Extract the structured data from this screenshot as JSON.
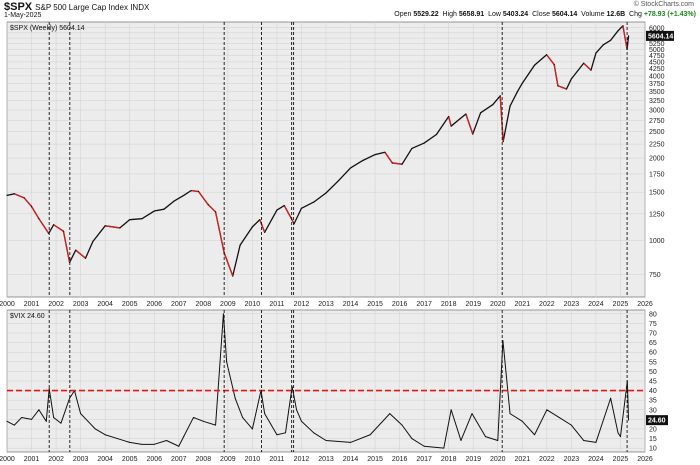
{
  "header": {
    "symbol": "$SPX",
    "name": "S&P 500 Large Cap Index",
    "exchange": "INDX",
    "date": "1-May-2025",
    "credit": "© StockCharts.com",
    "open_label": "Open",
    "open": "5529.22",
    "high_label": "High",
    "high": "5658.91",
    "low_label": "Low",
    "low": "5403.24",
    "close_label": "Close",
    "close": "5604.14",
    "volume_label": "Volume",
    "volume": "12.6B",
    "chg_label": "Chg",
    "chg": "+78.93 (+1.43%)"
  },
  "colors": {
    "price_line": "#111111",
    "price_down": "#d62020",
    "vix_line": "#111111",
    "threshold": "#e01818",
    "vlines": "#111111",
    "grid": "#d0d0d0",
    "panel_bg": "#ececec"
  },
  "chart_data": [
    {
      "type": "line",
      "label": "$SPX (Weekly) 5604.14",
      "last_value_label": "5604.14",
      "y_scale": "log",
      "ylim": [
        620,
        6300
      ],
      "yticks": [
        750,
        1000,
        1250,
        1500,
        1750,
        2000,
        2250,
        2500,
        2750,
        3000,
        3250,
        3500,
        3750,
        4000,
        4250,
        4500,
        4750,
        5000,
        5250,
        5500,
        5750,
        6000
      ],
      "xlim": [
        2000.0,
        2026.0
      ],
      "xticks": [
        "2000",
        "2001",
        "2002",
        "2003",
        "2004",
        "2005",
        "2006",
        "2007",
        "2008",
        "2009",
        "2010",
        "2011",
        "2012",
        "2013",
        "2014",
        "2015",
        "2016",
        "2017",
        "2018",
        "2019",
        "2020",
        "2021",
        "2022",
        "2023",
        "2024",
        "2025",
        "2026"
      ],
      "x": [
        2000.0,
        2000.3,
        2000.7,
        2001.0,
        2001.3,
        2001.7,
        2001.9,
        2002.3,
        2002.55,
        2002.8,
        2003.2,
        2003.5,
        2004.0,
        2004.6,
        2005.0,
        2005.5,
        2006.0,
        2006.4,
        2006.8,
        2007.2,
        2007.5,
        2007.8,
        2008.2,
        2008.5,
        2008.85,
        2009.2,
        2009.5,
        2010.0,
        2010.3,
        2010.5,
        2011.0,
        2011.3,
        2011.7,
        2012.0,
        2012.5,
        2013.0,
        2013.5,
        2014.0,
        2014.5,
        2015.0,
        2015.4,
        2015.7,
        2016.1,
        2016.5,
        2017.0,
        2017.5,
        2018.0,
        2018.1,
        2018.7,
        2018.98,
        2019.3,
        2019.8,
        2020.1,
        2020.22,
        2020.5,
        2020.8,
        2021.0,
        2021.5,
        2021.99,
        2022.3,
        2022.45,
        2022.8,
        2023.0,
        2023.5,
        2023.8,
        2024.0,
        2024.3,
        2024.6,
        2024.9,
        2025.1,
        2025.27,
        2025.33
      ],
      "y": [
        1460,
        1480,
        1430,
        1330,
        1200,
        1060,
        1140,
        1080,
        830,
        920,
        860,
        990,
        1130,
        1110,
        1190,
        1200,
        1280,
        1300,
        1390,
        1460,
        1520,
        1510,
        1350,
        1270,
        900,
        740,
        960,
        1120,
        1190,
        1070,
        1290,
        1340,
        1150,
        1310,
        1380,
        1490,
        1650,
        1840,
        1960,
        2060,
        2100,
        1920,
        1900,
        2170,
        2270,
        2440,
        2840,
        2620,
        2900,
        2450,
        2930,
        3140,
        3380,
        2300,
        3100,
        3500,
        3760,
        4380,
        4780,
        4400,
        3680,
        3580,
        3900,
        4450,
        4200,
        4850,
        5200,
        5400,
        5850,
        6100,
        5000,
        5604
      ]
    },
    {
      "type": "line",
      "label": "$VIX 24.60",
      "last_value_label": "24.60",
      "ylim": [
        8,
        82
      ],
      "yticks": [
        10,
        15,
        20,
        25,
        30,
        35,
        40,
        45,
        50,
        55,
        60,
        65,
        70,
        75,
        80
      ],
      "threshold": 40,
      "xlim": [
        2000.0,
        2026.0
      ],
      "xticks": [
        "2000",
        "2001",
        "2002",
        "2003",
        "2004",
        "2005",
        "2006",
        "2007",
        "2008",
        "2009",
        "2010",
        "2011",
        "2012",
        "2013",
        "2014",
        "2015",
        "2016",
        "2017",
        "2018",
        "2019",
        "2020",
        "2021",
        "2022",
        "2023",
        "2024",
        "2025",
        "2026"
      ],
      "x": [
        2000.0,
        2000.3,
        2000.6,
        2001.0,
        2001.3,
        2001.6,
        2001.72,
        2001.9,
        2002.2,
        2002.55,
        2002.75,
        2003.0,
        2003.3,
        2003.6,
        2004.0,
        2004.5,
        2005.0,
        2005.5,
        2006.0,
        2006.5,
        2007.0,
        2007.2,
        2007.6,
        2008.0,
        2008.5,
        2008.82,
        2008.95,
        2009.3,
        2009.6,
        2010.0,
        2010.35,
        2010.5,
        2011.0,
        2011.35,
        2011.62,
        2011.8,
        2012.0,
        2012.5,
        2013.0,
        2014.0,
        2014.8,
        2015.6,
        2016.1,
        2016.5,
        2017.0,
        2017.8,
        2018.1,
        2018.5,
        2018.95,
        2019.5,
        2020.0,
        2020.21,
        2020.5,
        2021.0,
        2021.5,
        2022.0,
        2022.5,
        2023.0,
        2023.5,
        2024.0,
        2024.6,
        2024.9,
        2025.0,
        2025.28,
        2025.33
      ],
      "y": [
        24,
        22,
        26,
        25,
        30,
        24,
        41,
        26,
        23,
        36,
        40,
        28,
        24,
        20,
        17,
        15,
        13,
        12,
        12,
        14,
        11,
        16,
        26,
        24,
        22,
        80,
        55,
        36,
        26,
        20,
        40,
        28,
        17,
        18,
        42,
        30,
        24,
        18,
        14,
        13,
        17,
        28,
        22,
        15,
        11,
        10,
        30,
        14,
        28,
        16,
        14,
        66,
        28,
        24,
        17,
        30,
        26,
        22,
        14,
        13,
        36,
        18,
        16,
        45,
        24.6
      ]
    }
  ],
  "crisis_dates": [
    2001.72,
    2002.56,
    2008.85,
    2010.37,
    2011.6,
    2011.68,
    2020.18,
    2025.27
  ]
}
